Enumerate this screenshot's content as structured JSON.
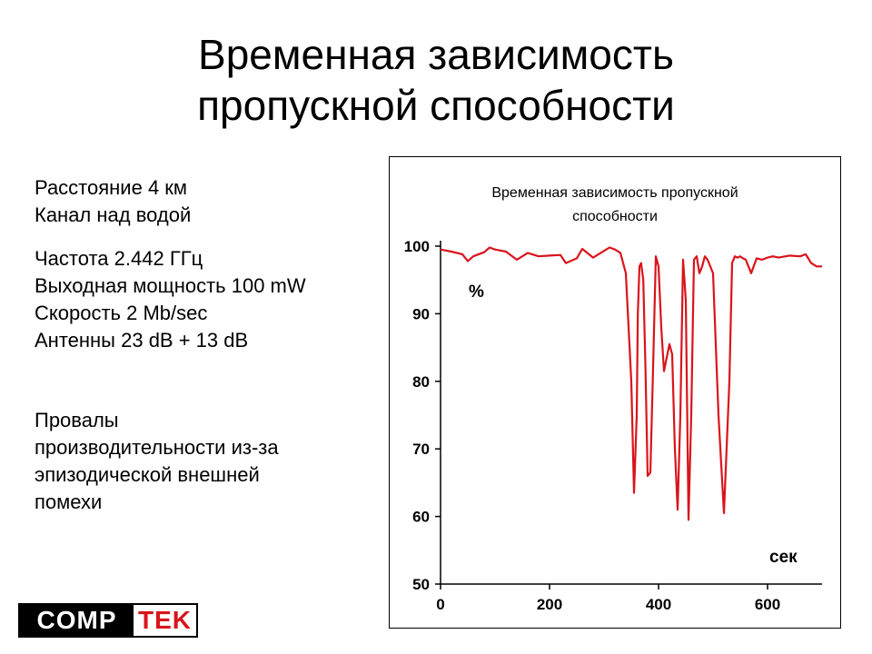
{
  "slide": {
    "title_line1": "Временная зависимость",
    "title_line2": "пропускной способности"
  },
  "info": {
    "lines_a": [
      "Расстояние 4 км",
      "Канал над водой"
    ],
    "lines_b": [
      "Частота 2.442 ГГц",
      "Выходная мощность 100 mW",
      "Скорость 2 Mb/sec",
      "Антенны 23 dB + 13 dB"
    ],
    "lines_c": [
      "Провалы",
      "производительности из-за",
      "эпизодической внешней",
      "помехи"
    ]
  },
  "logo": {
    "left": "COMP",
    "right": "TEK",
    "right_color": "#d9141b"
  },
  "chart_data": {
    "type": "line",
    "title_line1": "Временная зависимость пропускной",
    "title_line2": "способности",
    "ylabel": "%",
    "xlabel": "сек",
    "xlim": [
      0,
      700
    ],
    "ylim": [
      50,
      100
    ],
    "xticks": [
      0,
      200,
      400,
      600
    ],
    "yticks": [
      50,
      60,
      70,
      80,
      90,
      100
    ],
    "grid": false,
    "line_color": "#d9141b",
    "series": [
      {
        "x": [
          0,
          20,
          40,
          50,
          60,
          80,
          90,
          100,
          120,
          140,
          150,
          160,
          180,
          200,
          220,
          230,
          250,
          260,
          280,
          300,
          310,
          320,
          330,
          340,
          350,
          355,
          360,
          362,
          365,
          368,
          372,
          376,
          380,
          385,
          390,
          395,
          400,
          405,
          410,
          415,
          420,
          425,
          430,
          435,
          440,
          445,
          450,
          455,
          460,
          465,
          470,
          475,
          480,
          485,
          490,
          500,
          510,
          520,
          530,
          535,
          540,
          545,
          550,
          555,
          560,
          570,
          580,
          590,
          600,
          610,
          620,
          640,
          660,
          670,
          680,
          690,
          700
        ],
        "y": [
          99.5,
          99.2,
          98.8,
          97.8,
          98.5,
          99.1,
          99.8,
          99.5,
          99.2,
          98.0,
          98.5,
          99.0,
          98.5,
          98.6,
          98.7,
          97.5,
          98.2,
          99.6,
          98.3,
          99.3,
          99.8,
          99.5,
          99.0,
          96.0,
          80.0,
          63.5,
          75.0,
          90.0,
          97.0,
          97.5,
          95.0,
          82.0,
          66.0,
          66.5,
          82.0,
          98.5,
          97.0,
          88.0,
          81.5,
          83.5,
          85.5,
          84.0,
          70.0,
          61.0,
          75.0,
          98.0,
          92.0,
          59.5,
          75.0,
          98.0,
          98.5,
          96.0,
          97.0,
          98.5,
          98.0,
          96.0,
          75.0,
          60.5,
          80.0,
          97.5,
          98.5,
          98.3,
          98.5,
          98.2,
          98.0,
          96.0,
          98.2,
          98.0,
          98.3,
          98.5,
          98.3,
          98.6,
          98.5,
          98.8,
          97.5,
          97.0,
          97.0
        ]
      }
    ]
  }
}
